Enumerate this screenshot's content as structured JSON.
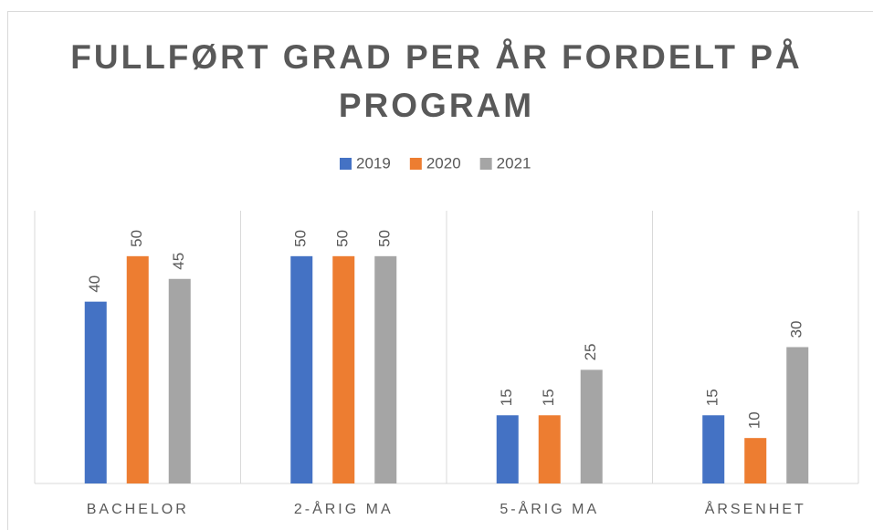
{
  "chart_data": {
    "type": "bar",
    "title": "FULLFØRT GRAD PER ÅR FORDELT PÅ PROGRAM",
    "categories": [
      "BACHELOR",
      "2-ÅRIG MA",
      "5-ÅRIG MA",
      "ÅRSENHET"
    ],
    "series": [
      {
        "name": "2019",
        "color": "#4472c4",
        "values": [
          40,
          50,
          15,
          15
        ]
      },
      {
        "name": "2020",
        "color": "#ed7d31",
        "values": [
          50,
          50,
          15,
          10
        ]
      },
      {
        "name": "2021",
        "color": "#a5a5a5",
        "values": [
          45,
          50,
          25,
          30
        ]
      }
    ],
    "ylim": [
      0,
      60
    ],
    "legend": "top"
  }
}
